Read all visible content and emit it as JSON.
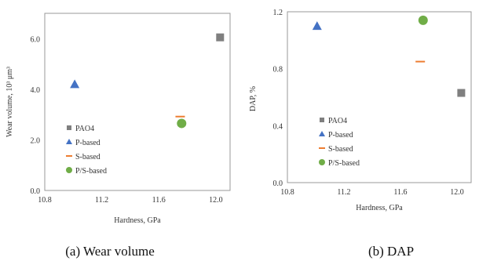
{
  "colors": {
    "PAO4": "#7f7f7f",
    "P-based": "#4472c4",
    "S-based": "#ed7d31",
    "P/S-based": "#70ad47",
    "axis": "#999999"
  },
  "chart_data": [
    {
      "id": "left",
      "type": "scatter",
      "caption": "(a) Wear volume",
      "xlabel": "Hardness, GPa",
      "ylabel": "Wear volume, 10³ μm³",
      "xlim": [
        10.8,
        12.1
      ],
      "ylim": [
        0.0,
        7.0
      ],
      "xticks": [
        "10.8",
        "11.2",
        "11.6",
        "12.0"
      ],
      "yticks": [
        "0.0",
        "2.0",
        "4.0",
        "6.0"
      ],
      "legend_position": "lower-left",
      "series": [
        {
          "name": "PAO4",
          "marker": "square",
          "x": [
            12.03
          ],
          "y": [
            6.05
          ]
        },
        {
          "name": "P-based",
          "marker": "triangle",
          "x": [
            11.01
          ],
          "y": [
            4.2
          ]
        },
        {
          "name": "S-based",
          "marker": "dash",
          "x": [
            11.75
          ],
          "y": [
            2.92
          ]
        },
        {
          "name": "P/S-based",
          "marker": "circle",
          "x": [
            11.76
          ],
          "y": [
            2.65
          ]
        }
      ]
    },
    {
      "id": "right",
      "type": "scatter",
      "caption": "(b) DAP",
      "xlabel": "Hardness, GPa",
      "ylabel": "DAP, %",
      "xlim": [
        10.8,
        12.1
      ],
      "ylim": [
        0.0,
        1.2
      ],
      "xticks": [
        "10.8",
        "11.2",
        "11.6",
        "12.0"
      ],
      "yticks": [
        "0.0",
        "0.4",
        "0.8",
        "1.2"
      ],
      "legend_position": "lower-left",
      "series": [
        {
          "name": "PAO4",
          "marker": "square",
          "x": [
            12.03
          ],
          "y": [
            0.63
          ]
        },
        {
          "name": "P-based",
          "marker": "triangle",
          "x": [
            11.01
          ],
          "y": [
            1.1
          ]
        },
        {
          "name": "S-based",
          "marker": "dash",
          "x": [
            11.74
          ],
          "y": [
            0.85
          ]
        },
        {
          "name": "P/S-based",
          "marker": "circle",
          "x": [
            11.76
          ],
          "y": [
            1.14
          ]
        }
      ]
    }
  ]
}
